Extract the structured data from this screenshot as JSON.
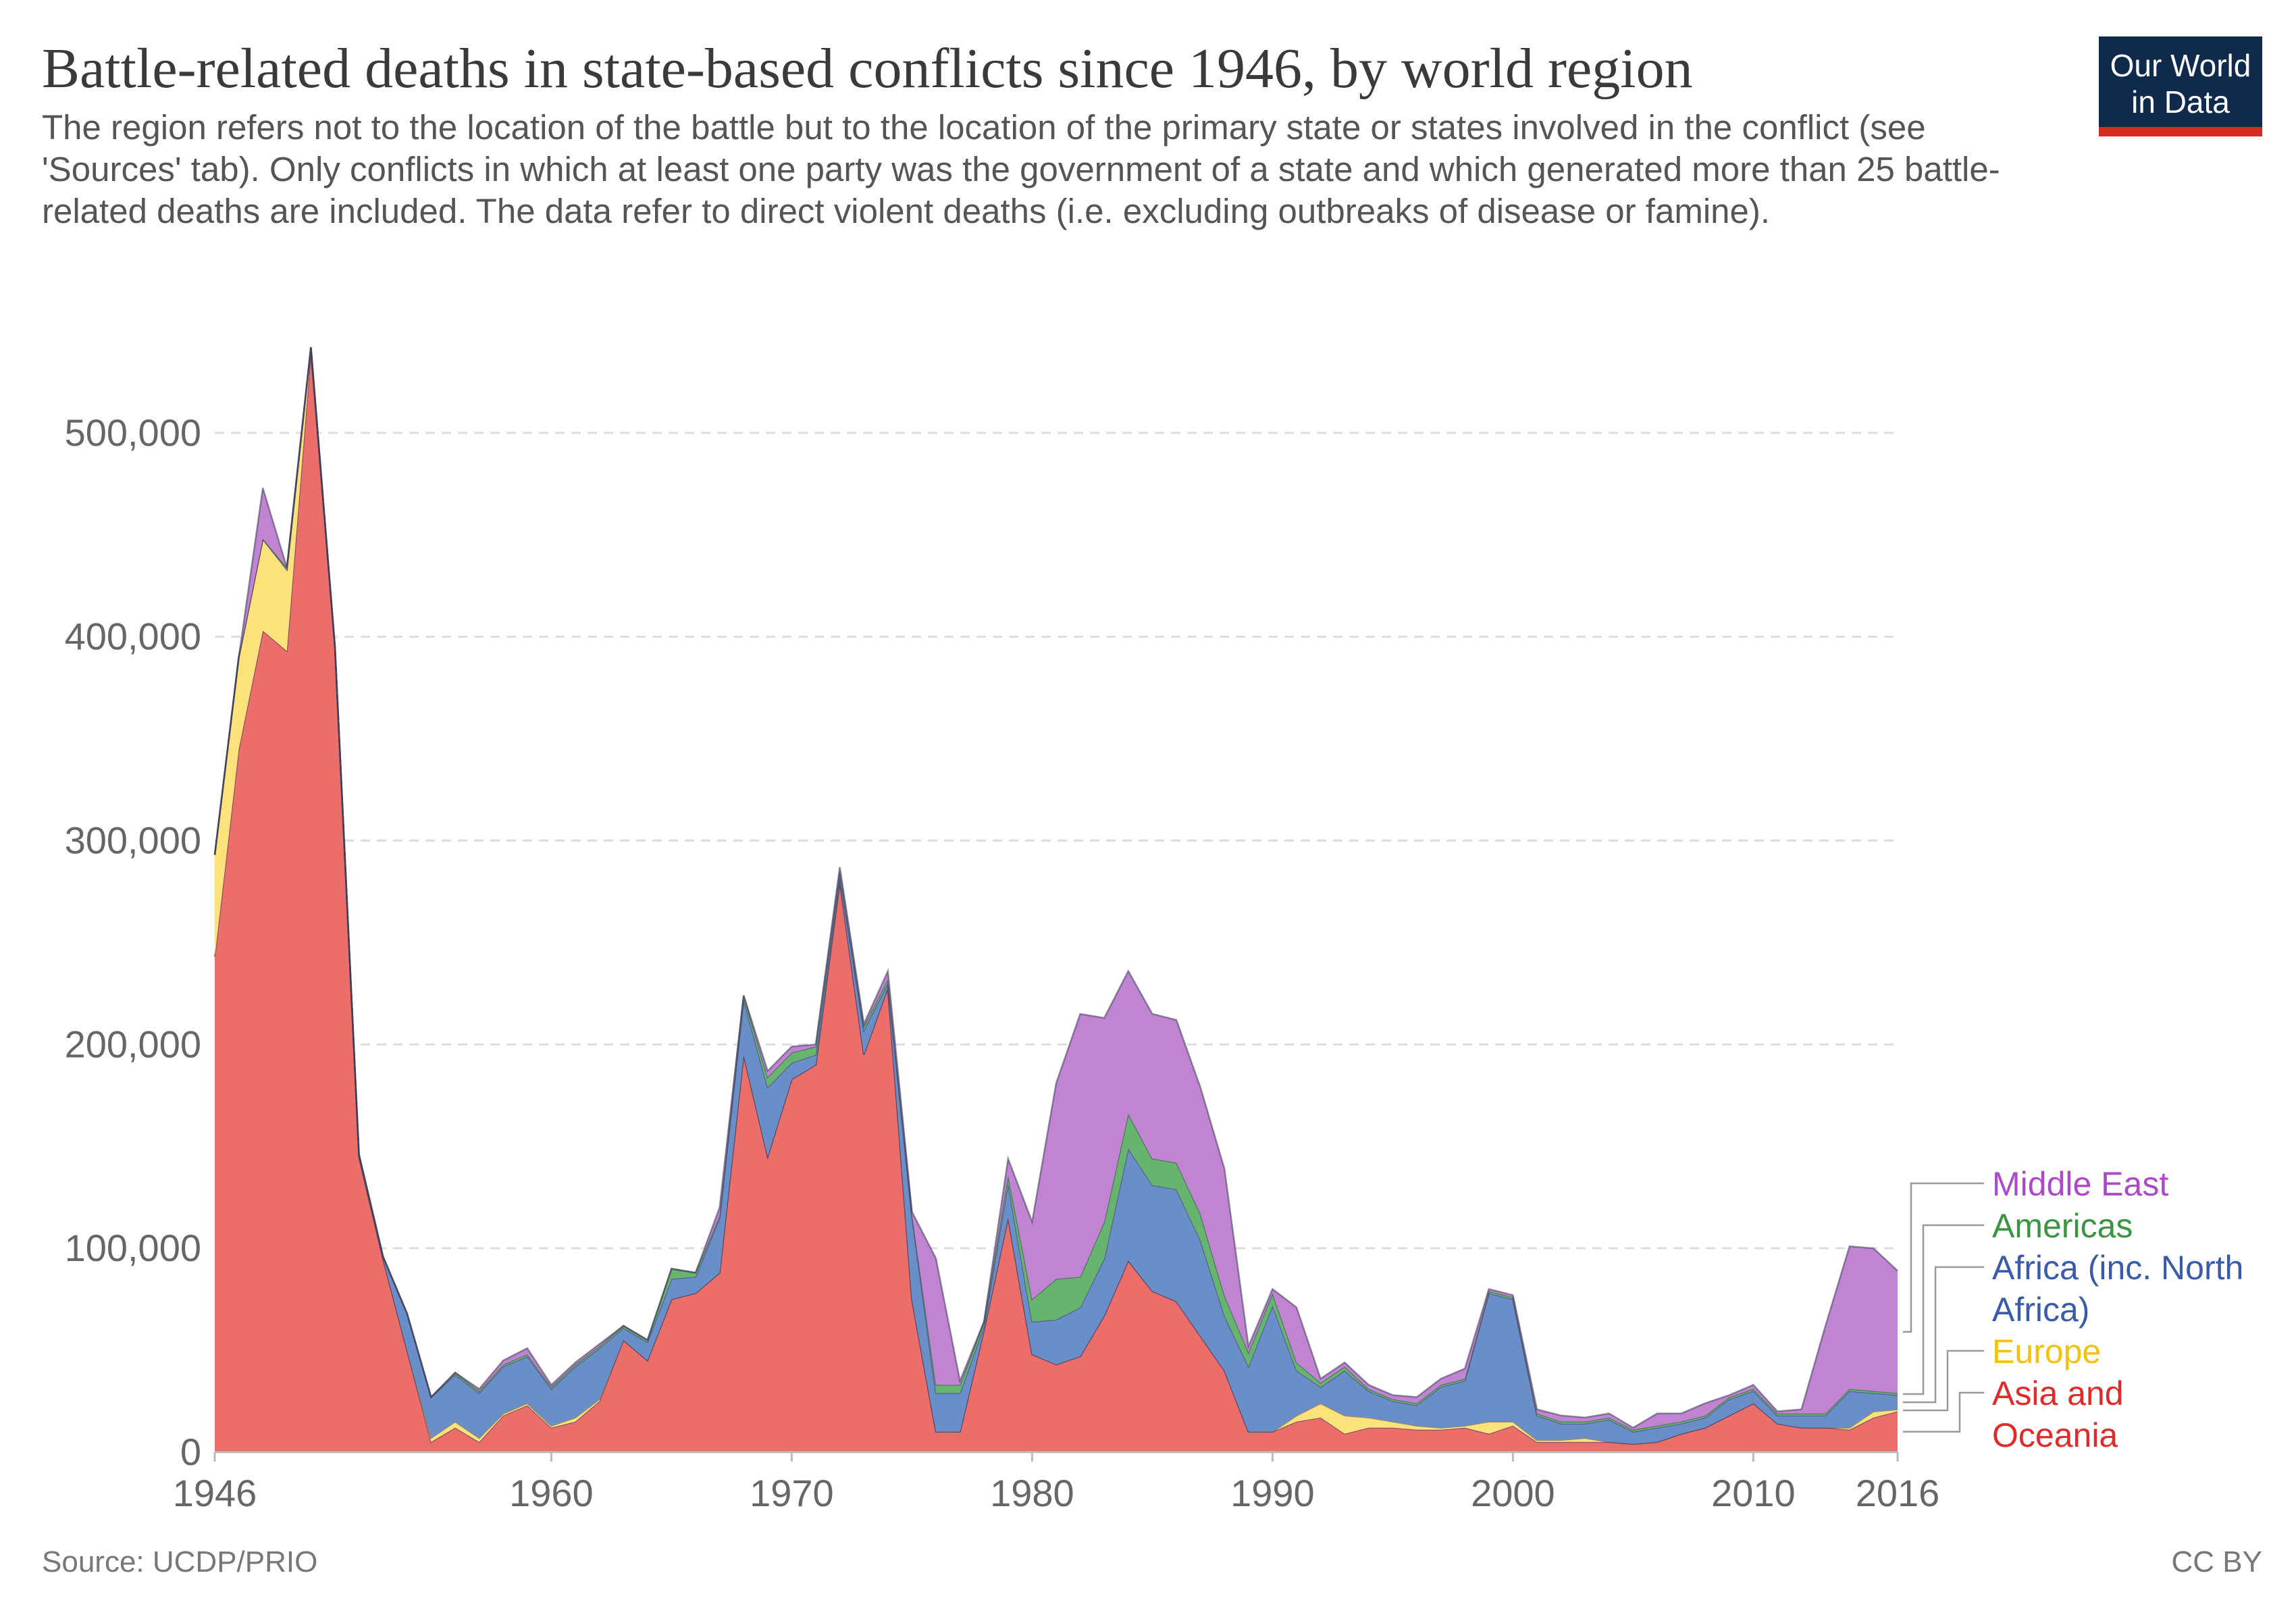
{
  "header": {
    "title": "Battle-related deaths in state-based conflicts since 1946, by world region",
    "subtitle": "The region refers not to the location of the battle but to the location of the primary state or states involved in the conflict (see 'Sources' tab). Only conflicts in which at least one party was the government of a state and which generated more than 25 battle-related deaths are included. The data refer to direct violent deaths (i.e. excluding outbreaks of disease or famine).",
    "logo_line1": "Our World",
    "logo_line2": "in Data"
  },
  "footer": {
    "source": "Source: UCDP/PRIO",
    "license": "CC BY"
  },
  "colors": {
    "asia": "#ec6e6a",
    "europe": "#fde17b",
    "africa": "#6a8ec8",
    "americas": "#66b46e",
    "middle_east": "#c084d0",
    "asia_label": "#e12a2a",
    "europe_label": "#f2c20e",
    "africa_label": "#3a5ba8",
    "americas_label": "#3a9441",
    "middle_east_label": "#ad49c9",
    "grid": "#dddddd",
    "axis_text": "#666666"
  },
  "chart_data": {
    "type": "area",
    "stacked": true,
    "title": "Battle-related deaths in state-based conflicts since 1946, by world region",
    "xlabel": "",
    "ylabel": "",
    "xlim": [
      1946,
      2016
    ],
    "ylim": [
      0,
      550000
    ],
    "y_ticks": [
      0,
      100000,
      200000,
      300000,
      400000,
      500000
    ],
    "y_tick_labels": [
      "0",
      "100,000",
      "200,000",
      "300,000",
      "400,000",
      "500,000"
    ],
    "x_ticks": [
      1946,
      1960,
      1970,
      1980,
      1990,
      2000,
      2010,
      2016
    ],
    "x_tick_labels": [
      "1946",
      "1960",
      "1970",
      "1980",
      "1990",
      "2000",
      "2010",
      "2016"
    ],
    "grid": true,
    "legend_position": "right",
    "x": [
      1946,
      1947,
      1948,
      1949,
      1950,
      1951,
      1952,
      1953,
      1954,
      1955,
      1956,
      1957,
      1958,
      1959,
      1960,
      1961,
      1962,
      1963,
      1964,
      1965,
      1966,
      1967,
      1968,
      1969,
      1970,
      1971,
      1972,
      1973,
      1974,
      1975,
      1976,
      1977,
      1978,
      1979,
      1980,
      1981,
      1982,
      1983,
      1984,
      1985,
      1986,
      1987,
      1988,
      1989,
      1990,
      1991,
      1992,
      1993,
      1994,
      1995,
      1996,
      1997,
      1998,
      1999,
      2000,
      2001,
      2002,
      2003,
      2004,
      2005,
      2006,
      2007,
      2008,
      2009,
      2010,
      2011,
      2012,
      2013,
      2014,
      2015,
      2016
    ],
    "series": [
      {
        "name": "Asia and Oceania",
        "label_lines": [
          "Asia and",
          "Oceania"
        ],
        "color_key": "asia",
        "values": [
          243000,
          345000,
          403000,
          393000,
          540000,
          395000,
          145000,
          95000,
          50000,
          5000,
          12000,
          5000,
          18000,
          23000,
          12000,
          15000,
          25000,
          55000,
          45000,
          75000,
          78000,
          88000,
          195000,
          145000,
          183000,
          190000,
          280000,
          195000,
          228000,
          75000,
          10000,
          10000,
          60000,
          115000,
          48000,
          43000,
          47000,
          67000,
          94000,
          79000,
          74000,
          57000,
          40000,
          10000,
          10000,
          15000,
          17000,
          9000,
          12000,
          12000,
          11000,
          11000,
          12000,
          9000,
          13000,
          5000,
          5000,
          5000,
          5000,
          4000,
          5000,
          9000,
          12000,
          18000,
          24000,
          14000,
          12000,
          12000,
          11000,
          17000,
          20000
        ]
      },
      {
        "name": "Europe",
        "label_lines": [
          "Europe"
        ],
        "color_key": "europe",
        "values": [
          50000,
          45000,
          45000,
          40000,
          2000,
          0,
          0,
          0,
          0,
          2000,
          3000,
          2000,
          1000,
          1000,
          1000,
          2000,
          1000,
          0,
          0,
          0,
          0,
          0,
          0,
          0,
          0,
          0,
          0,
          0,
          0,
          0,
          0,
          0,
          0,
          0,
          0,
          0,
          0,
          0,
          0,
          0,
          0,
          0,
          0,
          0,
          0,
          3000,
          7000,
          9000,
          5000,
          3000,
          2000,
          1000,
          1000,
          6000,
          2000,
          1000,
          1000,
          2000,
          0,
          0,
          0,
          0,
          0,
          0,
          0,
          0,
          0,
          0,
          1000,
          3000,
          1000
        ]
      },
      {
        "name": "Africa (inc. North Africa)",
        "label_lines": [
          "Africa (inc. North",
          "Africa)"
        ],
        "color_key": "africa",
        "values": [
          0,
          0,
          0,
          0,
          0,
          0,
          1000,
          1000,
          18000,
          20000,
          23000,
          22000,
          23000,
          23000,
          18000,
          25000,
          25000,
          6000,
          9000,
          10000,
          8000,
          27000,
          27000,
          34000,
          8000,
          5000,
          3000,
          12000,
          2000,
          41000,
          19000,
          19000,
          2000,
          17000,
          16000,
          22000,
          24000,
          28000,
          55000,
          52000,
          55000,
          47000,
          27000,
          32000,
          62000,
          22000,
          8000,
          22000,
          13000,
          10000,
          10000,
          20000,
          22000,
          63000,
          60000,
          12000,
          8000,
          7000,
          11000,
          6000,
          7000,
          5000,
          5000,
          8000,
          6000,
          4000,
          6000,
          6000,
          18000,
          9000,
          7000
        ]
      },
      {
        "name": "Americas",
        "label_lines": [
          "Americas"
        ],
        "color_key": "americas",
        "values": [
          0,
          0,
          0,
          1000,
          0,
          0,
          0,
          0,
          0,
          0,
          1000,
          1000,
          1000,
          1000,
          1000,
          1000,
          1000,
          1000,
          1000,
          5000,
          2000,
          1000,
          2000,
          5000,
          5000,
          4000,
          2000,
          2000,
          2000,
          1000,
          4000,
          4000,
          2000,
          4000,
          11000,
          20000,
          15000,
          18000,
          17000,
          13000,
          13000,
          13000,
          10000,
          7000,
          6000,
          4000,
          2000,
          2000,
          1000,
          1000,
          1000,
          1000,
          1000,
          1000,
          1000,
          1000,
          1000,
          1000,
          1000,
          1000,
          1000,
          1000,
          1000,
          1000,
          1000,
          1000,
          1000,
          1000,
          1000,
          1000,
          1000
        ]
      },
      {
        "name": "Middle East",
        "label_lines": [
          "Middle East"
        ],
        "color_key": "middle_east",
        "values": [
          0,
          0,
          25000,
          0,
          0,
          0,
          0,
          0,
          0,
          0,
          0,
          1000,
          2000,
          3000,
          1000,
          1000,
          1000,
          0,
          0,
          0,
          0,
          4000,
          0,
          3000,
          3000,
          1000,
          2000,
          1000,
          4000,
          1000,
          62000,
          2000,
          0,
          8000,
          38000,
          96000,
          129000,
          100000,
          70000,
          71000,
          70000,
          62000,
          62000,
          3000,
          2000,
          27000,
          2000,
          2000,
          2000,
          2000,
          3000,
          3000,
          5000,
          1000,
          1000,
          2000,
          3000,
          2000,
          2000,
          1000,
          6000,
          4000,
          6000,
          1000,
          2000,
          1000,
          2000,
          43000,
          70000,
          70000,
          60000
        ]
      }
    ]
  }
}
